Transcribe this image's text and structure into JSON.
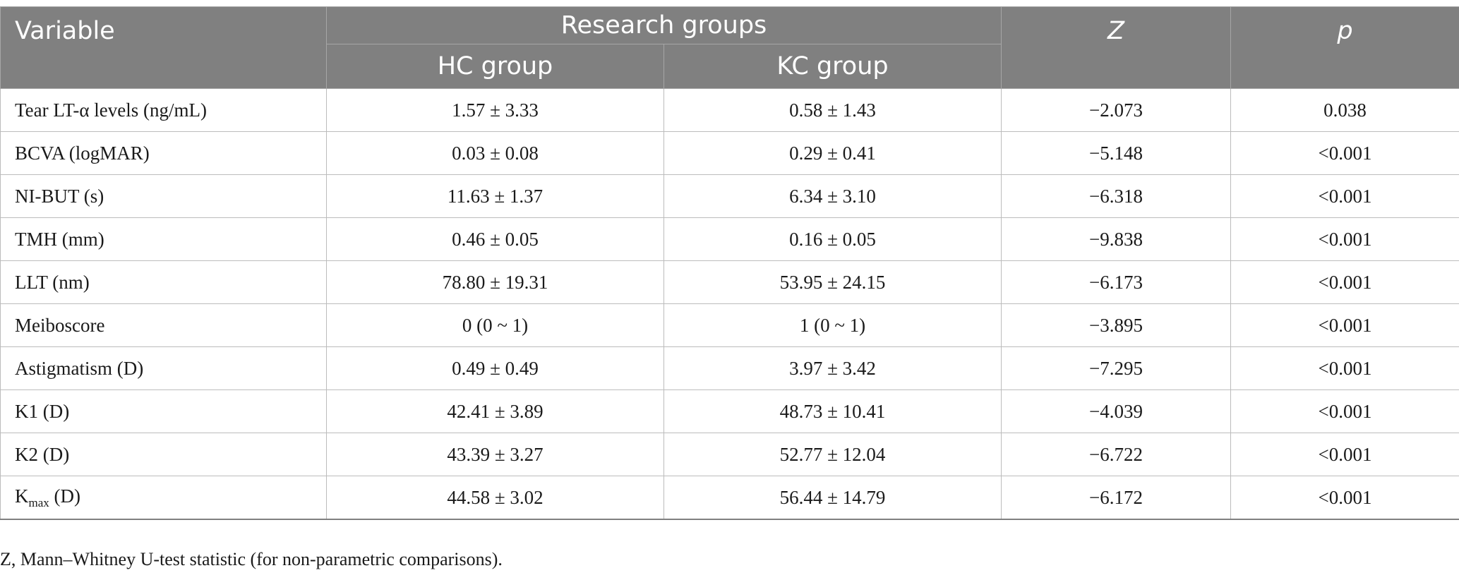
{
  "table": {
    "header": {
      "variable": "Variable",
      "group_span": "Research groups",
      "hc": "HC group",
      "kc": "KC group",
      "z": "Z",
      "p": "p"
    },
    "rows": [
      {
        "variable": "Tear LT-α levels (ng/mL)",
        "hc": "1.57 ± 3.33",
        "kc": "0.58 ± 1.43",
        "z": "−2.073",
        "p": "0.038"
      },
      {
        "variable": "BCVA (logMAR)",
        "hc": "0.03 ± 0.08",
        "kc": "0.29 ± 0.41",
        "z": "−5.148",
        "p": "<0.001"
      },
      {
        "variable": "NI-BUT (s)",
        "hc": "11.63 ± 1.37",
        "kc": "6.34 ± 3.10",
        "z": "−6.318",
        "p": "<0.001"
      },
      {
        "variable": "TMH (mm)",
        "hc": "0.46 ± 0.05",
        "kc": "0.16 ± 0.05",
        "z": "−9.838",
        "p": "<0.001"
      },
      {
        "variable": "LLT (nm)",
        "hc": "78.80 ± 19.31",
        "kc": "53.95 ± 24.15",
        "z": "−6.173",
        "p": "<0.001"
      },
      {
        "variable": "Meiboscore",
        "hc": "0 (0 ~ 1)",
        "kc": "1 (0 ~ 1)",
        "z": "−3.895",
        "p": "<0.001"
      },
      {
        "variable": "Astigmatism (D)",
        "hc": "0.49 ± 0.49",
        "kc": "3.97 ± 3.42",
        "z": "−7.295",
        "p": "<0.001"
      },
      {
        "variable": "K1 (D)",
        "hc": "42.41 ± 3.89",
        "kc": "48.73 ± 10.41",
        "z": "−4.039",
        "p": "<0.001"
      },
      {
        "variable": "K2 (D)",
        "hc": "43.39 ± 3.27",
        "kc": "52.77 ± 12.04",
        "z": "−6.722",
        "p": "<0.001"
      },
      {
        "variable_base": "K",
        "variable_sub": "max",
        "variable_suffix": " (D)",
        "hc": "44.58 ± 3.02",
        "kc": "56.44 ± 14.79",
        "z": "−6.172",
        "p": "<0.001"
      }
    ]
  },
  "footnote": "Z, Mann–Whitney U-test statistic (for non-parametric comparisons).",
  "colors": {
    "header_bg": "#808080",
    "header_text": "#ffffff",
    "grid": "#bcbcbc"
  }
}
